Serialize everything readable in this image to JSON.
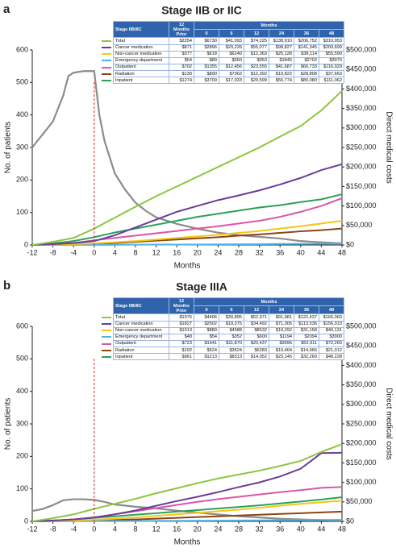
{
  "chart_data": [
    {
      "type": "line",
      "panel": "a",
      "title": "Stage IIB or IIC",
      "xlabel": "Months",
      "ylabel": "No. of patients",
      "y2label": "Direct medical costs",
      "xlim": [
        -12,
        48
      ],
      "xticks": [
        -12,
        -8,
        -4,
        0,
        4,
        8,
        12,
        16,
        20,
        24,
        28,
        32,
        36,
        40,
        44,
        48
      ],
      "ylim": [
        0,
        600
      ],
      "yticks": [
        0,
        100,
        200,
        300,
        400,
        500,
        600
      ],
      "y2lim": [
        0,
        500000
      ],
      "y2ticks": [
        {
          "value": 0,
          "label": "$0"
        },
        {
          "value": 50000,
          "label": "$50,000"
        },
        {
          "value": 100000,
          "label": "$100,000"
        },
        {
          "value": 150000,
          "label": "$150,000"
        },
        {
          "value": 200000,
          "label": "$200,000"
        },
        {
          "value": 250000,
          "label": "$250,000"
        },
        {
          "value": 300000,
          "label": "$300,000"
        },
        {
          "value": 350000,
          "label": "$350,000"
        },
        {
          "value": 400000,
          "label": "$400,000"
        },
        {
          "value": 450000,
          "label": "$450,000"
        },
        {
          "value": 500000,
          "label": "$500,000"
        }
      ],
      "ref_line_x": 0,
      "ref_line_color": "#d62728",
      "series": [
        {
          "name": "Total",
          "color": "#8dc63f",
          "axis": "y2",
          "x": [
            -12,
            -8,
            -4,
            0,
            4,
            8,
            12,
            16,
            20,
            24,
            28,
            32,
            36,
            40,
            44,
            48
          ],
          "values": [
            0,
            8000,
            18000,
            42000,
            70000,
            98000,
            125000,
            150000,
            175000,
            200000,
            225000,
            250000,
            278000,
            305000,
            345000,
            395000
          ]
        },
        {
          "name": "Cancer medication",
          "color": "#6a3d9a",
          "axis": "y2",
          "x": [
            -12,
            -8,
            -4,
            0,
            4,
            8,
            12,
            16,
            20,
            24,
            28,
            32,
            36,
            40,
            44,
            48
          ],
          "values": [
            0,
            2000,
            5000,
            10000,
            25000,
            45000,
            65000,
            85000,
            100000,
            115000,
            127000,
            140000,
            155000,
            172000,
            192000,
            207000
          ]
        },
        {
          "name": "Non-cancer medication",
          "color": "#f5c518",
          "axis": "y2",
          "x": [
            -12,
            -8,
            -4,
            0,
            4,
            8,
            12,
            16,
            20,
            24,
            28,
            32,
            36,
            40,
            44,
            48
          ],
          "values": [
            0,
            1000,
            2000,
            4000,
            7000,
            10000,
            14000,
            18000,
            22000,
            26000,
            31000,
            36000,
            42000,
            48000,
            55000,
            62000
          ]
        },
        {
          "name": "Emergency department",
          "color": "#4fb3e8",
          "axis": "y2",
          "x": [
            -12,
            -8,
            -4,
            0,
            4,
            8,
            12,
            16,
            20,
            24,
            28,
            32,
            36,
            40,
            44,
            48
          ],
          "values": [
            0,
            100,
            200,
            300,
            500,
            700,
            900,
            1100,
            1300,
            1600,
            1900,
            2200,
            2500,
            2800,
            3200,
            3600
          ]
        },
        {
          "name": "Outpatient",
          "color": "#d957a8",
          "axis": "y2",
          "x": [
            -12,
            -8,
            -4,
            0,
            4,
            8,
            12,
            16,
            20,
            24,
            28,
            32,
            36,
            40,
            44,
            48
          ],
          "values": [
            0,
            2000,
            5000,
            12000,
            18000,
            24000,
            30000,
            36000,
            42000,
            48000,
            55000,
            62000,
            72000,
            85000,
            100000,
            120000
          ]
        },
        {
          "name": "Radiation",
          "color": "#8b4513",
          "axis": "y2",
          "x": [
            -12,
            -8,
            -4,
            0,
            4,
            8,
            12,
            16,
            20,
            24,
            28,
            32,
            36,
            40,
            44,
            48
          ],
          "values": [
            0,
            500,
            1000,
            2000,
            5000,
            8000,
            11000,
            14000,
            17000,
            20000,
            24000,
            27000,
            31000,
            35000,
            38000,
            42000
          ]
        },
        {
          "name": "Inpatient",
          "color": "#2ca05a",
          "axis": "y2",
          "x": [
            -12,
            -8,
            -4,
            0,
            4,
            8,
            12,
            16,
            20,
            24,
            28,
            32,
            36,
            40,
            44,
            48
          ],
          "values": [
            0,
            4000,
            10000,
            20000,
            32000,
            42000,
            52000,
            62000,
            72000,
            80000,
            88000,
            96000,
            102000,
            110000,
            117000,
            130000
          ]
        },
        {
          "color": "#8c8c8c",
          "axis": "y",
          "x": [
            -12,
            -10,
            -8,
            -6,
            -5,
            -4,
            -2,
            0,
            1,
            2,
            4,
            6,
            8,
            10,
            12,
            16,
            20,
            24,
            28,
            32,
            36,
            40,
            44,
            48
          ],
          "values": [
            300,
            340,
            380,
            460,
            520,
            530,
            535,
            535,
            400,
            320,
            220,
            170,
            130,
            105,
            85,
            65,
            50,
            38,
            30,
            25,
            20,
            12,
            8,
            5
          ]
        }
      ],
      "table": {
        "header": "Stage IIB/IIC",
        "prior_header": "12 Months Prior",
        "months_header": "Months",
        "columns": [
          0,
          6,
          12,
          24,
          36,
          48
        ],
        "rows": [
          [
            "$2254",
            "$6730",
            "$41,093",
            "$74,225",
            "$138,910",
            "$206,752",
            "$310,953"
          ],
          [
            "$871",
            "$2896",
            "$29,226",
            "$55,077",
            "$98,827",
            "$141,345",
            "$200,699"
          ],
          [
            "$377",
            "$618",
            "$6240",
            "$12,363",
            "$25,128",
            "$38,114",
            "$55,590"
          ],
          [
            "$54",
            "$89",
            "$560",
            "$953",
            "$1845",
            "$2702",
            "$3970"
          ],
          [
            "$702",
            "$1355",
            "$12,456",
            "$23,555",
            "$41,687",
            "$66,733",
            "$116,929"
          ],
          [
            "$130",
            "$890",
            "$7362",
            "$12,392",
            "$19,822",
            "$28,808",
            "$37,663"
          ],
          [
            "$1274",
            "$3709",
            "$17,933",
            "$29,599",
            "$56,774",
            "$80,080",
            "$111,062"
          ]
        ]
      }
    },
    {
      "type": "line",
      "panel": "b",
      "title": "Stage IIIA",
      "xlabel": "Months",
      "ylabel": "No. of patients",
      "y2label": "Direct medical costs",
      "xlim": [
        -12,
        48
      ],
      "xticks": [
        -12,
        -8,
        -4,
        0,
        4,
        8,
        12,
        16,
        20,
        24,
        28,
        32,
        36,
        40,
        44,
        48
      ],
      "ylim": [
        0,
        600
      ],
      "yticks": [
        0,
        100,
        200,
        300,
        400,
        500,
        600
      ],
      "y2lim": [
        0,
        500000
      ],
      "y2ticks": [
        {
          "value": 0,
          "label": "$0"
        },
        {
          "value": 50000,
          "label": "$50,000"
        },
        {
          "value": 100000,
          "label": "$100,000"
        },
        {
          "value": 150000,
          "label": "$150,000"
        },
        {
          "value": 200000,
          "label": "$200,000"
        },
        {
          "value": 250000,
          "label": "$250,000"
        },
        {
          "value": 300000,
          "label": "$300,000"
        },
        {
          "value": 350000,
          "label": "$350,000"
        },
        {
          "value": 400000,
          "label": "$400,000"
        },
        {
          "value": 450000,
          "label": "$450,000"
        },
        {
          "value": 500000,
          "label": "$500,000"
        }
      ],
      "ref_line_x": 0,
      "ref_line_color": "#d62728",
      "series": [
        {
          "name": "Total",
          "color": "#8dc63f",
          "axis": "y2",
          "x": [
            -12,
            -8,
            -4,
            0,
            4,
            8,
            12,
            16,
            20,
            24,
            28,
            32,
            36,
            40,
            44,
            48
          ],
          "values": [
            0,
            8000,
            18000,
            32000,
            45000,
            58000,
            72000,
            85000,
            98000,
            110000,
            120000,
            130000,
            142000,
            155000,
            178000,
            198000
          ]
        },
        {
          "name": "Cancer medication",
          "color": "#6a3d9a",
          "axis": "y2",
          "x": [
            -12,
            -8,
            -4,
            0,
            4,
            8,
            12,
            16,
            20,
            24,
            28,
            32,
            36,
            40,
            44,
            48
          ],
          "values": [
            0,
            2000,
            5000,
            10000,
            18000,
            28000,
            40000,
            52000,
            63000,
            75000,
            88000,
            100000,
            115000,
            135000,
            175000,
            176000
          ]
        },
        {
          "name": "Non-cancer medication",
          "color": "#f5c518",
          "axis": "y2",
          "x": [
            -12,
            -8,
            -4,
            0,
            4,
            8,
            12,
            16,
            20,
            24,
            28,
            32,
            36,
            40,
            44,
            48
          ],
          "values": [
            0,
            1000,
            2000,
            4000,
            7000,
            10000,
            14000,
            18000,
            22000,
            26000,
            30000,
            35000,
            40000,
            45000,
            49000,
            53000
          ]
        },
        {
          "name": "Emergency department",
          "color": "#4fb3e8",
          "axis": "y2",
          "x": [
            -12,
            -8,
            -4,
            0,
            4,
            8,
            12,
            16,
            20,
            24,
            28,
            32,
            36,
            40,
            44,
            48
          ],
          "values": [
            0,
            200,
            400,
            600,
            800,
            1000,
            1200,
            1500,
            1800,
            2000,
            2300,
            2600,
            2900,
            3200,
            3500,
            3800
          ]
        },
        {
          "name": "Outpatient",
          "color": "#d957a8",
          "axis": "y2",
          "x": [
            -12,
            -8,
            -4,
            0,
            4,
            8,
            12,
            16,
            20,
            24,
            28,
            32,
            36,
            40,
            44,
            48
          ],
          "values": [
            0,
            2000,
            5000,
            10000,
            18000,
            26000,
            34000,
            42000,
            50000,
            57000,
            63000,
            69000,
            75000,
            80000,
            86000,
            88000
          ]
        },
        {
          "name": "Radiation",
          "color": "#8b4513",
          "axis": "y2",
          "x": [
            -12,
            -8,
            -4,
            0,
            4,
            8,
            12,
            16,
            20,
            24,
            28,
            32,
            36,
            40,
            44,
            48
          ],
          "values": [
            0,
            500,
            1000,
            2000,
            3500,
            5000,
            7000,
            9000,
            11000,
            13000,
            15000,
            17000,
            19000,
            21000,
            23000,
            25000
          ]
        },
        {
          "name": "Inpatient",
          "color": "#2ca05a",
          "axis": "y2",
          "x": [
            -12,
            -8,
            -4,
            0,
            4,
            8,
            12,
            16,
            20,
            24,
            28,
            32,
            36,
            40,
            44,
            48
          ],
          "values": [
            0,
            2000,
            5000,
            9000,
            13000,
            17000,
            21000,
            25000,
            29000,
            33000,
            37000,
            41000,
            46000,
            51000,
            56000,
            62000
          ]
        },
        {
          "color": "#8c8c8c",
          "axis": "y",
          "x": [
            -12,
            -10,
            -8,
            -6,
            -4,
            -2,
            0,
            2,
            4,
            8,
            12,
            16,
            20,
            24,
            28,
            32,
            36,
            40,
            44,
            48
          ],
          "values": [
            32,
            38,
            50,
            65,
            68,
            68,
            66,
            60,
            52,
            45,
            40,
            33,
            27,
            21,
            16,
            12,
            8,
            6,
            4,
            3
          ]
        }
      ],
      "table": {
        "header": "Stage IIB/IIC",
        "prior_header": "12 Months Prior",
        "months_header": "Months",
        "columns": [
          0,
          6,
          12,
          24,
          36,
          48
        ],
        "rows": [
          [
            "$1976",
            "$4406",
            "$30,895",
            "$52,971",
            "$91,981",
            "$122,437",
            "$166,060"
          ],
          [
            "$1827",
            "$2502",
            "$19,375",
            "$34,492",
            "$71,305",
            "$113,536",
            "$156,013"
          ],
          [
            "$1013",
            "$880",
            "$4588",
            "$8532",
            "$19,292",
            "$31,158",
            "$40,131"
          ],
          [
            "$48",
            "$54",
            "$352",
            "$600",
            "$1194",
            "$2094",
            "$3900"
          ],
          [
            "$723",
            "$1641",
            "$11,870",
            "$20,437",
            "$3996",
            "$53,911",
            "$72,265"
          ],
          [
            "$102",
            "$524",
            "$3524",
            "$6283",
            "$10,464",
            "$14,966",
            "$21,012"
          ],
          [
            "$961",
            "$1213",
            "$8313",
            "$14,052",
            "$23,145",
            "$32,260",
            "$48,228"
          ]
        ]
      }
    }
  ]
}
